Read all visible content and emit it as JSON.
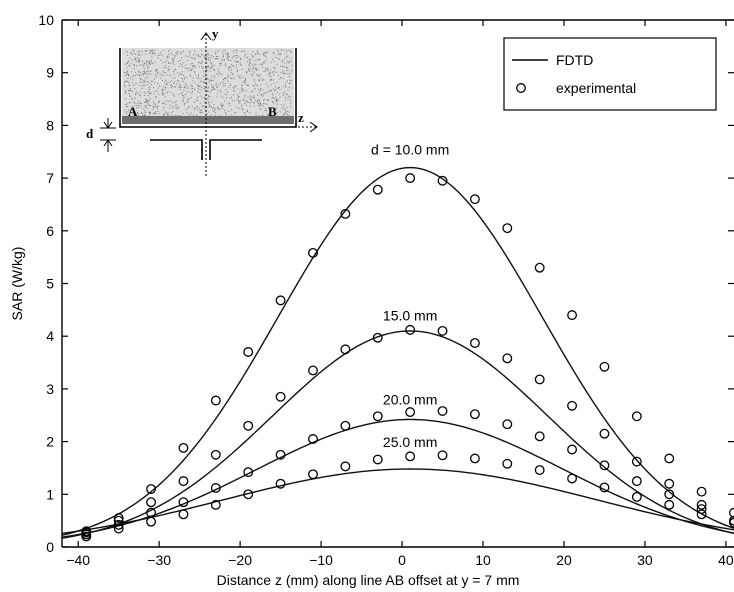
{
  "chart_data": {
    "type": "line",
    "xlabel": "Distance z (mm) along line AB offset at y = 7 mm",
    "ylabel": "SAR (W/kg)",
    "xlim": [
      -42,
      41
    ],
    "ylim": [
      0,
      10
    ],
    "xticks": [
      "−40",
      "−30",
      "−20",
      "−10",
      "0",
      "10",
      "20",
      "30",
      "40"
    ],
    "yticks": [
      "0",
      "1",
      "2",
      "3",
      "4",
      "5",
      "6",
      "7",
      "8",
      "9",
      "10"
    ],
    "grid": false,
    "legend": {
      "position": "top-right",
      "entries": [
        {
          "label": "FDTD",
          "marker": "line"
        },
        {
          "label": "experimental",
          "marker": "circle"
        }
      ]
    },
    "series": [
      {
        "name": "FDTD",
        "curves": [
          {
            "label": "d = 10.0 mm",
            "peak": 7.2,
            "center": 1.0,
            "sigma": 16.3
          },
          {
            "label": "15.0 mm",
            "peak": 4.1,
            "center": 1.0,
            "sigma": 17.0
          },
          {
            "label": "20.0 mm",
            "peak": 2.42,
            "center": 1.0,
            "sigma": 19.0
          },
          {
            "label": "25.0 mm",
            "peak": 1.48,
            "center": 1.0,
            "sigma": 23.0
          }
        ]
      },
      {
        "name": "experimental",
        "groups": [
          {
            "label": "d = 10.0 mm",
            "x": [
              -39,
              -35,
              -31,
              -27,
              -23,
              -19,
              -15,
              -11,
              -7,
              -3,
              1,
              5,
              9,
              13,
              17,
              21,
              25,
              29,
              33,
              37,
              41
            ],
            "y": [
              0.3,
              0.55,
              1.1,
              1.88,
              2.78,
              3.7,
              4.68,
              5.58,
              6.32,
              6.78,
              7.0,
              6.95,
              6.6,
              6.05,
              5.3,
              4.4,
              3.42,
              2.48,
              1.68,
              1.05,
              0.65
            ]
          },
          {
            "label": "15.0 mm",
            "x": [
              -39,
              -35,
              -31,
              -27,
              -23,
              -19,
              -15,
              -11,
              -7,
              -3,
              1,
              5,
              9,
              13,
              17,
              21,
              25,
              29,
              33,
              37,
              41
            ],
            "y": [
              0.28,
              0.5,
              0.85,
              1.25,
              1.75,
              2.3,
              2.85,
              3.35,
              3.75,
              3.97,
              4.12,
              4.1,
              3.87,
              3.58,
              3.18,
              2.68,
              2.15,
              1.62,
              1.2,
              0.8,
              0.5
            ]
          },
          {
            "label": "20.0 mm",
            "x": [
              -39,
              -35,
              -31,
              -27,
              -23,
              -19,
              -15,
              -11,
              -7,
              -3,
              1,
              5,
              9,
              13,
              17,
              21,
              25,
              29,
              33,
              37,
              41
            ],
            "y": [
              0.24,
              0.42,
              0.65,
              0.85,
              1.12,
              1.42,
              1.75,
              2.05,
              2.3,
              2.48,
              2.56,
              2.58,
              2.52,
              2.33,
              2.1,
              1.85,
              1.55,
              1.25,
              1.0,
              0.72,
              0.5
            ]
          },
          {
            "label": "25.0 mm",
            "x": [
              -39,
              -35,
              -31,
              -27,
              -23,
              -19,
              -15,
              -11,
              -7,
              -3,
              1,
              5,
              9,
              13,
              17,
              21,
              25,
              29,
              33,
              37,
              41
            ],
            "y": [
              0.2,
              0.35,
              0.48,
              0.62,
              0.8,
              1.0,
              1.2,
              1.38,
              1.53,
              1.66,
              1.72,
              1.74,
              1.68,
              1.58,
              1.46,
              1.3,
              1.13,
              0.95,
              0.8,
              0.62,
              0.46
            ]
          }
        ]
      }
    ],
    "annotations": [
      "d = 10.0 mm",
      "15.0 mm",
      "20.0 mm",
      "25.0 mm"
    ],
    "inset": {
      "labels": [
        "A",
        "B",
        "y",
        "z",
        "d"
      ]
    }
  }
}
